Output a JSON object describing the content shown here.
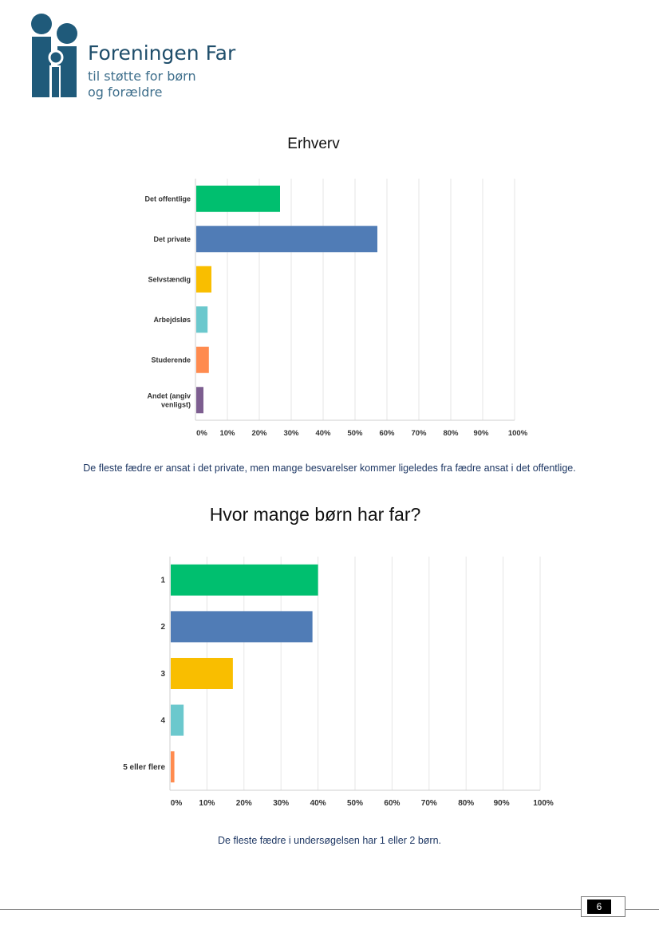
{
  "header": {
    "org_name": "Foreningen Far",
    "tagline_line1": "til støtte for børn",
    "tagline_line2": "og forældre",
    "logo_icon": "parent-child-figures-logo",
    "logo_color": "#1f5a7a"
  },
  "charts": [
    {
      "title": "Erhverv",
      "caption": "De fleste fædre er ansat i det private, men mange besvarelser kommer ligeledes fra fædre ansat i det offentlige."
    },
    {
      "title": "Hvor mange børn har far?",
      "caption": "De fleste fædre i undersøgelsen har 1 eller 2 børn."
    }
  ],
  "chart_data": [
    {
      "type": "bar",
      "orientation": "horizontal",
      "title": "Erhverv",
      "categories": [
        "Det offentlige",
        "Det private",
        "Selvstændig",
        "Arbejdsløs",
        "Studerende",
        "Andet (angiv venligst)"
      ],
      "values": [
        26.5,
        57,
        5,
        3.8,
        4.2,
        2.5
      ],
      "colors": [
        "#00bf6f",
        "#507cb6",
        "#f9be00",
        "#6bc8cd",
        "#ff8b4f",
        "#7d5e90"
      ],
      "xlim": [
        0,
        100
      ],
      "xticks": [
        "0%",
        "10%",
        "20%",
        "30%",
        "40%",
        "50%",
        "60%",
        "70%",
        "80%",
        "90%",
        "100%"
      ],
      "grid": true,
      "legend": "none"
    },
    {
      "type": "bar",
      "orientation": "horizontal",
      "title": "Hvor mange børn har far?",
      "categories": [
        "1",
        "2",
        "3",
        "4",
        "5 eller flere"
      ],
      "values": [
        40,
        38.5,
        17,
        3.7,
        1.2
      ],
      "colors": [
        "#00bf6f",
        "#507cb6",
        "#f9be00",
        "#6bc8cd",
        "#ff8b4f"
      ],
      "xlim": [
        0,
        100
      ],
      "xticks": [
        "0%",
        "10%",
        "20%",
        "30%",
        "40%",
        "50%",
        "60%",
        "70%",
        "80%",
        "90%",
        "100%"
      ],
      "grid": true,
      "legend": "none"
    }
  ],
  "footer": {
    "page_number": "6"
  }
}
